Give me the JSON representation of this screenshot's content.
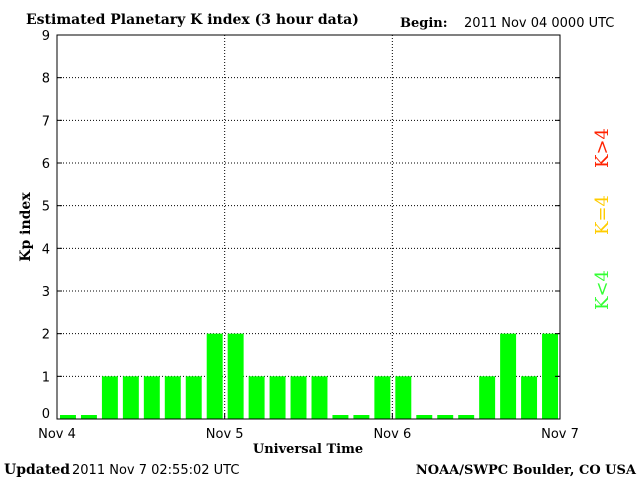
{
  "chart_data": {
    "type": "bar",
    "title": "Estimated Planetary K index (3 hour data)",
    "begin_label": "Begin:",
    "begin_value": "2011 Nov 04 0000 UTC",
    "xlabel": "Universal Time",
    "ylabel": "Kp index",
    "ylim": [
      0,
      9
    ],
    "y_ticks": [
      "0",
      "1",
      "2",
      "3",
      "4",
      "5",
      "6",
      "7",
      "8",
      "9"
    ],
    "x_tick_labels": [
      "Nov 4",
      "Nov 5",
      "Nov 6",
      "Nov 7"
    ],
    "values": [
      0,
      0,
      1,
      1,
      1,
      1,
      1,
      2,
      2,
      1,
      1,
      1,
      1,
      0,
      0,
      1,
      1,
      0,
      0,
      0,
      1,
      2,
      1,
      2
    ],
    "grid": true,
    "bar_color": "#00ff00",
    "legend": [
      {
        "label": "K<4",
        "color": "#33ff33"
      },
      {
        "label": "K=4",
        "color": "#ffcc00"
      },
      {
        "label": "K>4",
        "color": "#ff2200"
      }
    ]
  },
  "footer": {
    "updated_label": "Updated",
    "updated_value": "2011 Nov 7 02:55:02 UTC",
    "source": "NOAA/SWPC Boulder, CO USA"
  }
}
